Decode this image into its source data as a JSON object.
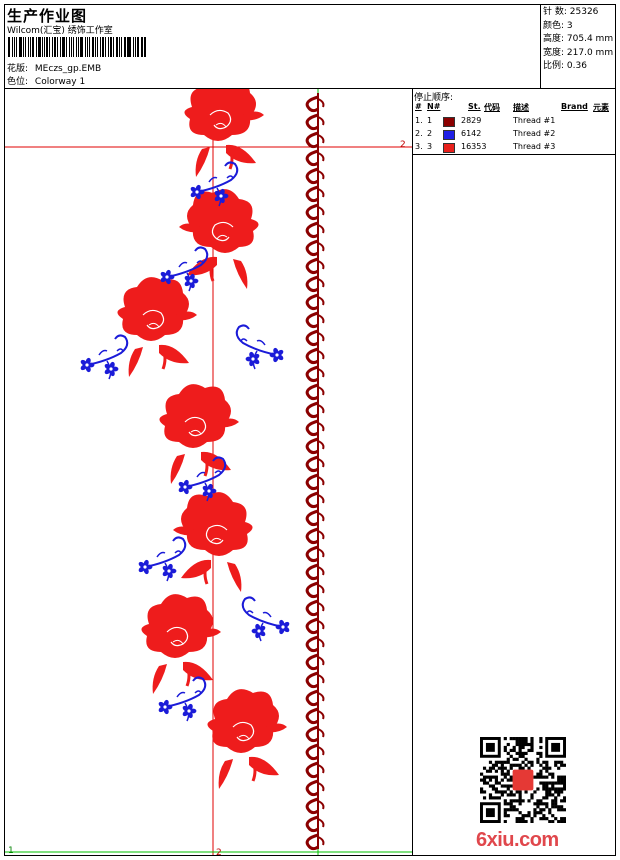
{
  "header": {
    "title": "生产作业图",
    "subtitle": "Wilcom(汇宝) 绣饰工作室",
    "design_label": "花版:",
    "design_value": "MEczs_gp.EMB",
    "colorway_label": "色位:",
    "colorway_value": "Colorway 1"
  },
  "stats": [
    {
      "label": "针 数:",
      "value": "25326"
    },
    {
      "label": "颜色:",
      "value": "3"
    },
    {
      "label": "高度:",
      "value": "705.4 mm"
    },
    {
      "label": "宽度:",
      "value": "217.0 mm"
    },
    {
      "label": "比例:",
      "value": "0.36"
    }
  ],
  "panel": {
    "title": "停止顺序:",
    "columns": {
      "hash": "#",
      "num": "N#",
      "st": "St.",
      "code": "代码",
      "desc": "描述",
      "brand": "Brand",
      "elem": "元素"
    },
    "rows": [
      {
        "index": "1.",
        "num": "1",
        "color": "#8b0000",
        "code": "2829",
        "desc": "Thread #1"
      },
      {
        "index": "2.",
        "num": "2",
        "color": "#1f1fe6",
        "code": "6142",
        "desc": "Thread #2"
      },
      {
        "index": "3.",
        "num": "3",
        "color": "#e8201c",
        "code": "16353",
        "desc": "Thread #3"
      }
    ]
  },
  "design_markers": {
    "red_h_label": "2",
    "red_v_label": "2",
    "green_h_label": "1"
  },
  "colors": {
    "border_red": "#8b0000",
    "flower_red": "#ee1c1c",
    "blue": "#1b1bd8",
    "guide_red": "#e00000",
    "guide_green": "#00c000"
  },
  "watermark": {
    "logo": "6xiu.com"
  }
}
